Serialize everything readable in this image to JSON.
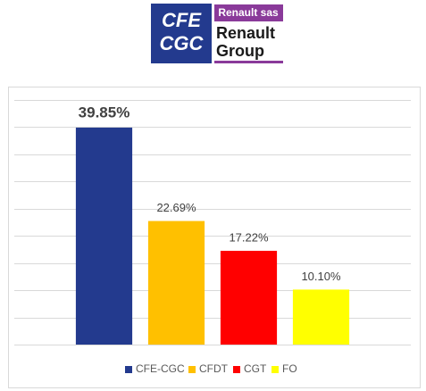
{
  "header": {
    "logo_lines": [
      "CFE",
      "CGC"
    ],
    "badge": "Renault sas",
    "brand_lines": [
      "Renault",
      "Group"
    ]
  },
  "chart_data": {
    "type": "bar",
    "categories": [
      "CFE-CGC",
      "CFDT",
      "CGT",
      "FO"
    ],
    "values": [
      39.85,
      22.69,
      17.22,
      10.1
    ],
    "value_labels": [
      "39.85%",
      "22.69%",
      "17.22%",
      "10.10%"
    ],
    "colors": [
      "#233a8e",
      "#ffc000",
      "#ff0000",
      "#ffff00"
    ],
    "ylim": [
      0,
      45
    ],
    "yticks": [
      0,
      5,
      10,
      15,
      20,
      25,
      30,
      35,
      40,
      45
    ],
    "grid": true,
    "legend": "bottom"
  }
}
